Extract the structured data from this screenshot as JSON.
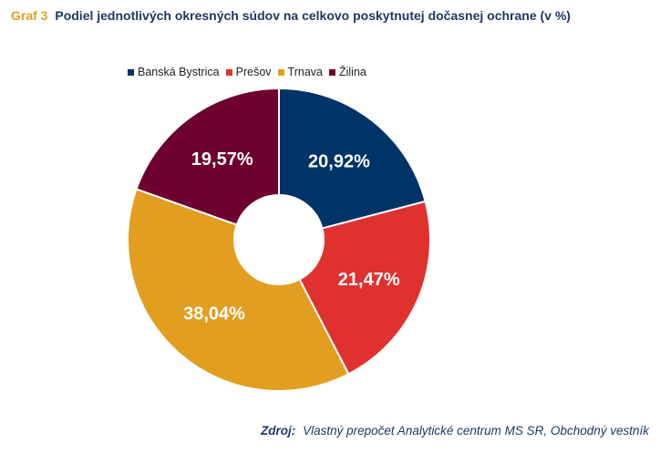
{
  "caption": {
    "prefix": "Graf  3",
    "title": "Podiel jednotlivých okresných súdov na celkovo poskytnutej dočasnej ochrane (v %)"
  },
  "chart_data": {
    "type": "pie",
    "variant": "doughnut",
    "categories": [
      "Banská Bystrica",
      "Prešov",
      "Trnava",
      "Žilina"
    ],
    "values": [
      20.92,
      21.47,
      38.04,
      19.57
    ],
    "labels": [
      "20,92%",
      "21,47%",
      "38,04%",
      "19,57%"
    ],
    "colors": [
      "#003366",
      "#e03131",
      "#e29e20",
      "#6e0030"
    ],
    "legend_position": "top",
    "start_angle": "12 o'clock",
    "direction": "clockwise"
  },
  "source": {
    "label": "Zdroj:",
    "text": "Vlastný prepočet Analytické centrum MS SR, Obchodný vestník"
  }
}
